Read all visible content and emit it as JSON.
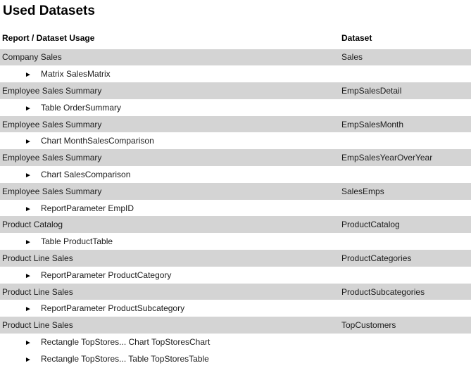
{
  "page": {
    "title": "Used Datasets"
  },
  "table": {
    "columns": {
      "usage": "Report / Dataset Usage",
      "dataset": "Dataset"
    },
    "expander_icon": "►",
    "groups": [
      {
        "report": "Company Sales",
        "dataset": "Sales",
        "children": [
          "Matrix SalesMatrix"
        ]
      },
      {
        "report": "Employee Sales Summary",
        "dataset": "EmpSalesDetail",
        "children": [
          "Table OrderSummary"
        ]
      },
      {
        "report": "Employee Sales Summary",
        "dataset": "EmpSalesMonth",
        "children": [
          "Chart MonthSalesComparison"
        ]
      },
      {
        "report": "Employee Sales Summary",
        "dataset": "EmpSalesYearOverYear",
        "children": [
          "Chart SalesComparison"
        ]
      },
      {
        "report": "Employee Sales Summary",
        "dataset": "SalesEmps",
        "children": [
          "ReportParameter EmpID"
        ]
      },
      {
        "report": "Product Catalog",
        "dataset": "ProductCatalog",
        "children": [
          "Table ProductTable"
        ]
      },
      {
        "report": "Product Line Sales",
        "dataset": "ProductCategories",
        "children": [
          "ReportParameter ProductCategory"
        ]
      },
      {
        "report": "Product Line Sales",
        "dataset": "ProductSubcategories",
        "children": [
          "ReportParameter ProductSubcategory"
        ]
      },
      {
        "report": "Product Line Sales",
        "dataset": "TopCustomers",
        "children": [
          "Rectangle TopStores... Chart TopStoresChart",
          "Rectangle TopStores... Table TopStoresTable"
        ]
      }
    ]
  },
  "colors": {
    "group_row_background": "#d4d4d4",
    "text": "#1c1c1c"
  }
}
